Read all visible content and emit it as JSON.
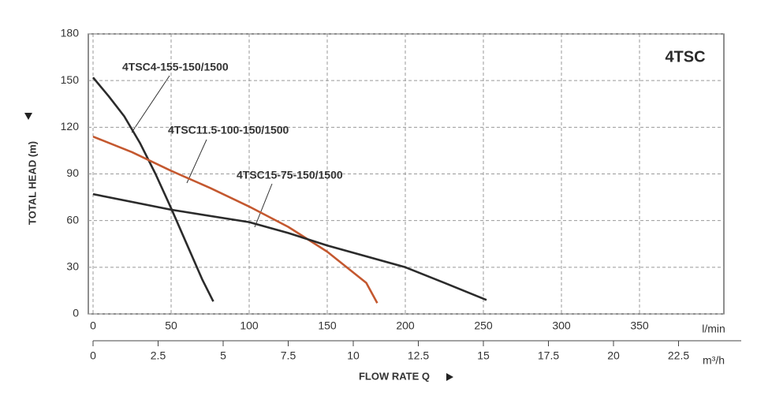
{
  "chart_data": {
    "type": "line",
    "title": "4TSC",
    "ylabel": "TOTAL HEAD (m)",
    "xlabel": "FLOW RATE Q",
    "xunit": "l/min",
    "x2unit": "m³/h",
    "xlim": [
      0,
      400
    ],
    "xticks": [
      0,
      50,
      100,
      150,
      200,
      250,
      300,
      350
    ],
    "x2lim": [
      0,
      24
    ],
    "x2ticks": [
      0,
      2.5,
      5,
      7.5,
      10,
      12.5,
      15,
      17.5,
      20,
      22.5
    ],
    "ylim": [
      0,
      180
    ],
    "yticks": [
      0,
      30,
      60,
      90,
      120,
      150,
      180
    ],
    "grid": true,
    "series": [
      {
        "name": "4TSC4-155-150/1500",
        "color": "#2b2b2b",
        "x": [
          0,
          10,
          20,
          30,
          40,
          50,
          60,
          70,
          77
        ],
        "values": [
          152,
          140,
          127,
          110,
          90,
          68,
          45,
          22,
          8
        ]
      },
      {
        "name": "4TSC11.5-100-150/1500",
        "color": "#c4582f",
        "x": [
          0,
          25,
          50,
          75,
          100,
          125,
          150,
          175,
          182
        ],
        "values": [
          114,
          104,
          92,
          81,
          69,
          56,
          40,
          20,
          7
        ]
      },
      {
        "name": "4TSC15-75-150/1500",
        "color": "#2b2b2b",
        "x": [
          0,
          50,
          100,
          125,
          150,
          200,
          225,
          252
        ],
        "values": [
          77,
          67,
          59,
          52,
          44,
          30,
          20,
          9
        ]
      }
    ]
  }
}
